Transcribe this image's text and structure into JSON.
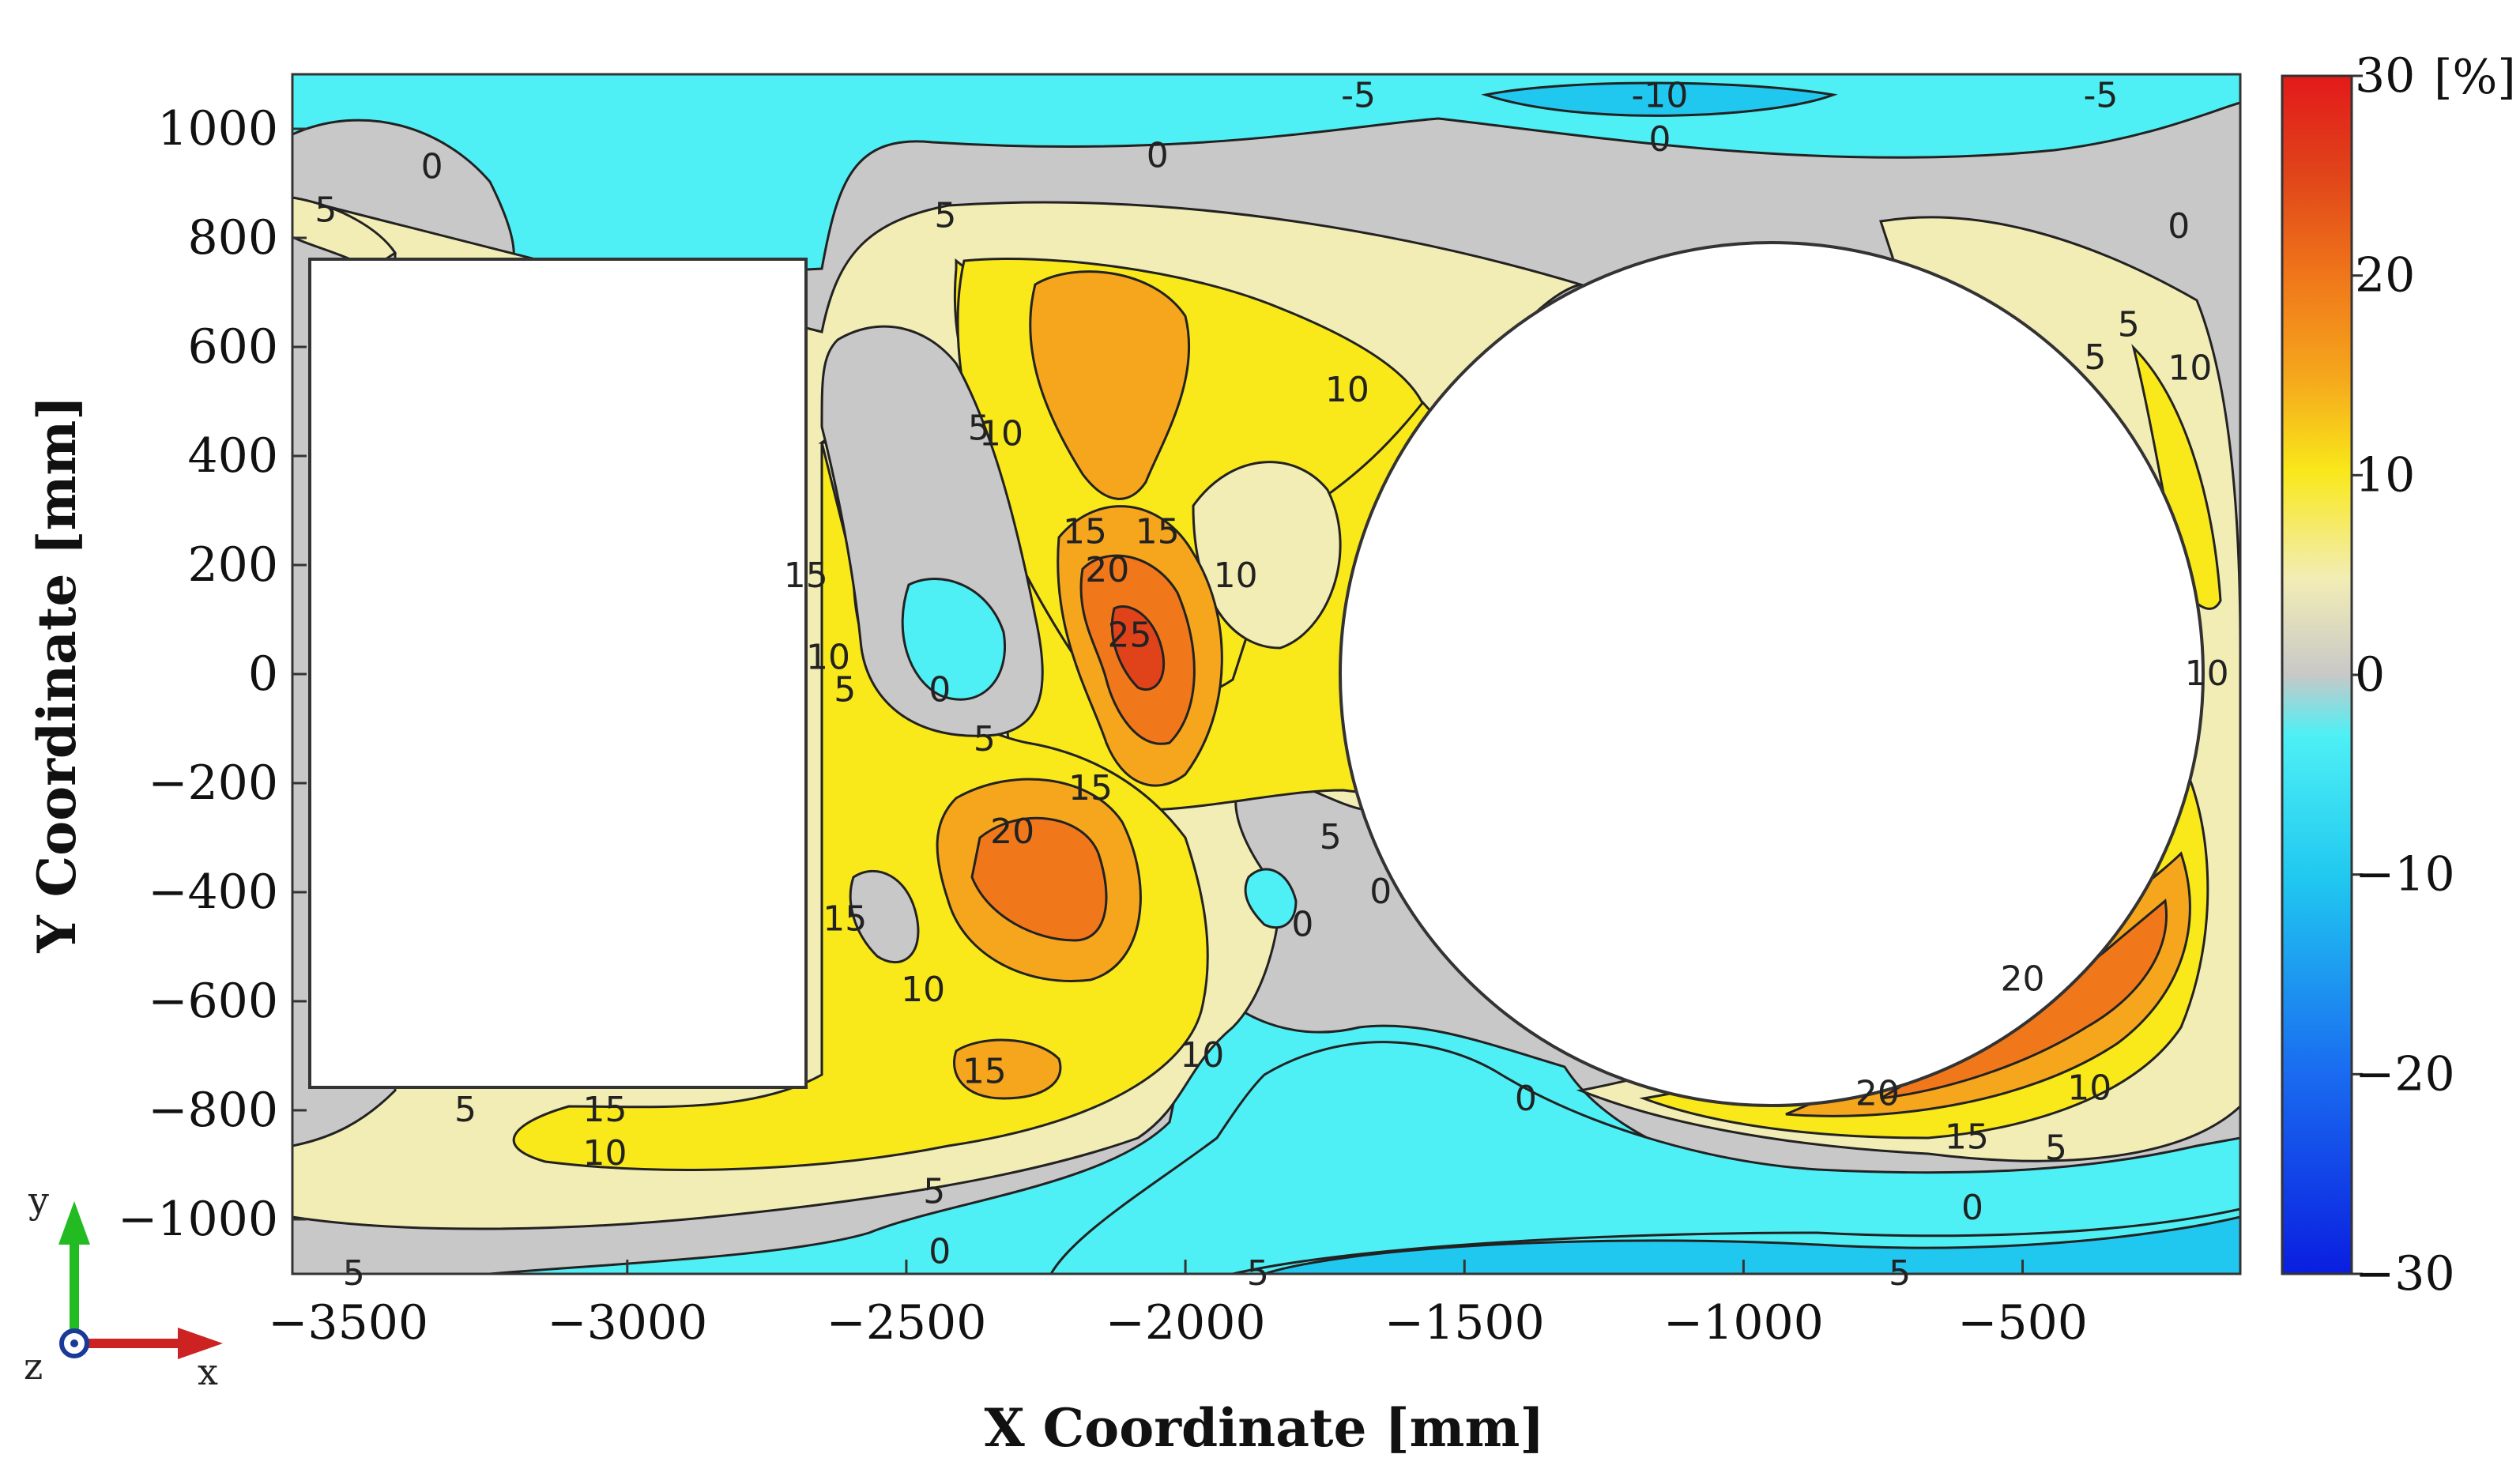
{
  "chart_data": {
    "type": "heatmap",
    "title": "",
    "xlabel": "X Coordinate [mm]",
    "ylabel": "Y Coordinate [mm]",
    "xlim": [
      -3600,
      -110
    ],
    "ylim": [
      -1100,
      1100
    ],
    "x_ticks": [
      -3500,
      -3000,
      -2500,
      -2000,
      -1500,
      -1000,
      -500
    ],
    "x_tick_labels": [
      "−3500",
      "−3000",
      "−2500",
      "−2000",
      "−1500",
      "−1000",
      "−500"
    ],
    "y_ticks": [
      1000,
      800,
      600,
      400,
      200,
      0,
      -200,
      -400,
      -600,
      -800,
      -1000
    ],
    "y_tick_labels": [
      "1000",
      "800",
      "600",
      "400",
      "200",
      "0",
      "−200",
      "−400",
      "−600",
      "−800",
      "−1000"
    ],
    "colorbar": {
      "min": -30,
      "max": 30,
      "ticks": [
        30,
        20,
        10,
        0,
        -10,
        -20,
        -30
      ],
      "tick_labels": [
        "30",
        "20",
        "10",
        "0",
        "−10",
        "−20",
        "−30"
      ],
      "unit": "[%]",
      "colors": {
        "-30": "#0a1ee0",
        "-20": "#1a6cf0",
        "-10": "#20c8f0",
        "-5": "#4ef0f5",
        "0": "#c8c8c8",
        "5": "#f2edb5",
        "10": "#f9e81a",
        "15": "#f5a61c",
        "20": "#f0781a",
        "25": "#e0431a",
        "30": "#e31a1a"
      }
    },
    "levels": [
      -10,
      -5,
      0,
      5,
      10,
      15,
      20,
      25
    ],
    "obstacles": [
      {
        "shape": "rectangle",
        "x_range": [
          -3565,
          -2690
        ],
        "y_range": [
          -750,
          760
        ]
      },
      {
        "shape": "circle",
        "center": [
          -945,
          0
        ],
        "radius": 775
      }
    ],
    "contour_labels": [
      {
        "text": "-5",
        "x": -1690,
        "y": 1060
      },
      {
        "text": "-10",
        "x": -1150,
        "y": 1060
      },
      {
        "text": "-5",
        "x": -360,
        "y": 1060
      },
      {
        "text": "0",
        "x": -3350,
        "y": 930
      },
      {
        "text": "0",
        "x": -2050,
        "y": 950
      },
      {
        "text": "0",
        "x": -1150,
        "y": 980
      },
      {
        "text": "5",
        "x": -3540,
        "y": 850
      },
      {
        "text": "5",
        "x": -2430,
        "y": 840
      },
      {
        "text": "10",
        "x": -1710,
        "y": 520
      },
      {
        "text": "5",
        "x": -2370,
        "y": 450
      },
      {
        "text": "10",
        "x": -2330,
        "y": 440
      },
      {
        "text": "15",
        "x": -2180,
        "y": 260
      },
      {
        "text": "15",
        "x": -2050,
        "y": 260
      },
      {
        "text": "20",
        "x": -2140,
        "y": 190
      },
      {
        "text": "25",
        "x": -2100,
        "y": 70
      },
      {
        "text": "10",
        "x": -1910,
        "y": 180
      },
      {
        "text": "15",
        "x": -2680,
        "y": 180
      },
      {
        "text": "10",
        "x": -2640,
        "y": 30
      },
      {
        "text": "5",
        "x": -2610,
        "y": -30
      },
      {
        "text": "0",
        "x": -2440,
        "y": -30
      },
      {
        "text": "5",
        "x": -2360,
        "y": -120
      },
      {
        "text": "15",
        "x": -2170,
        "y": -210
      },
      {
        "text": "20",
        "x": -2310,
        "y": -290
      },
      {
        "text": "15",
        "x": -2610,
        "y": -450
      },
      {
        "text": "10",
        "x": -2470,
        "y": -580
      },
      {
        "text": "5",
        "x": -1740,
        "y": -300
      },
      {
        "text": "0",
        "x": -1650,
        "y": -400
      },
      {
        "text": "0",
        "x": -1790,
        "y": -460
      },
      {
        "text": "10",
        "x": -1970,
        "y": -700
      },
      {
        "text": "15",
        "x": -2360,
        "y": -730
      },
      {
        "text": "15",
        "x": -3040,
        "y": -800
      },
      {
        "text": "5",
        "x": -3290,
        "y": -800
      },
      {
        "text": "10",
        "x": -3040,
        "y": -880
      },
      {
        "text": "5",
        "x": -2450,
        "y": -950
      },
      {
        "text": "0",
        "x": -2440,
        "y": -1060
      },
      {
        "text": "5",
        "x": -3490,
        "y": -1100
      },
      {
        "text": "5",
        "x": -1870,
        "y": -1100
      },
      {
        "text": "0",
        "x": -1390,
        "y": -780
      },
      {
        "text": "20",
        "x": -760,
        "y": -770
      },
      {
        "text": "15",
        "x": -600,
        "y": -850
      },
      {
        "text": "10",
        "x": -380,
        "y": -760
      },
      {
        "text": "5",
        "x": -440,
        "y": -870
      },
      {
        "text": "0",
        "x": -590,
        "y": -980
      },
      {
        "text": "5",
        "x": -720,
        "y": -1100
      },
      {
        "text": "20",
        "x": -500,
        "y": -560
      },
      {
        "text": "10",
        "x": -170,
        "y": 0
      },
      {
        "text": "5",
        "x": -310,
        "y": 640
      },
      {
        "text": "10",
        "x": -200,
        "y": 560
      },
      {
        "text": "0",
        "x": -220,
        "y": 820
      },
      {
        "text": "5",
        "x": -370,
        "y": 580
      }
    ],
    "orientation_triad": {
      "up_axis": "y",
      "right_axis": "x",
      "out_axis": "z"
    }
  }
}
